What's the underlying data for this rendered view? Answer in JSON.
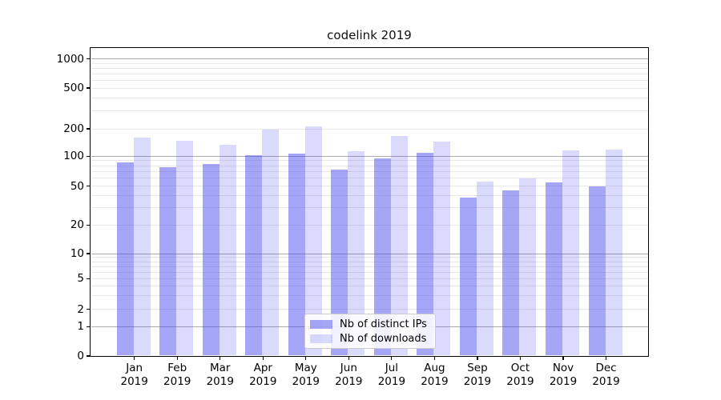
{
  "chart_data": {
    "type": "bar",
    "title": "codelink 2019",
    "yscale": "symlog",
    "yticks": [
      0,
      1,
      2,
      5,
      10,
      20,
      50,
      100,
      200,
      500,
      1000
    ],
    "ylim": [
      0,
      1285
    ],
    "grid": "horizontal, log minor and major gridlines",
    "legend_position": "lower center",
    "categories": [
      "Jan\n2019",
      "Feb\n2019",
      "Mar\n2019",
      "Apr\n2019",
      "May\n2019",
      "Jun\n2019",
      "Jul\n2019",
      "Aug\n2019",
      "Sep\n2019",
      "Oct\n2019",
      "Nov\n2019",
      "Dec\n2019"
    ],
    "series": [
      {
        "name": "Nb of distinct IPs",
        "color": "rgba(70,70,238,0.48)",
        "values": [
          87,
          77,
          84,
          103,
          106,
          73,
          96,
          110,
          38,
          45,
          55,
          50
        ]
      },
      {
        "name": "Nb of downloads",
        "color": "rgba(70,70,238,0.20)",
        "values": [
          161,
          147,
          133,
          196,
          210,
          114,
          168,
          145,
          56,
          60,
          117,
          119
        ]
      }
    ]
  },
  "colors": {
    "bar_dark_on_white": "#a6a6f1",
    "bar_light_on_white": "#dadaf9",
    "grid_major": "#ababab",
    "grid_minor": "#e8e8e8",
    "spine": "#000000",
    "background": "#ffffff",
    "title_text": "#111111"
  }
}
